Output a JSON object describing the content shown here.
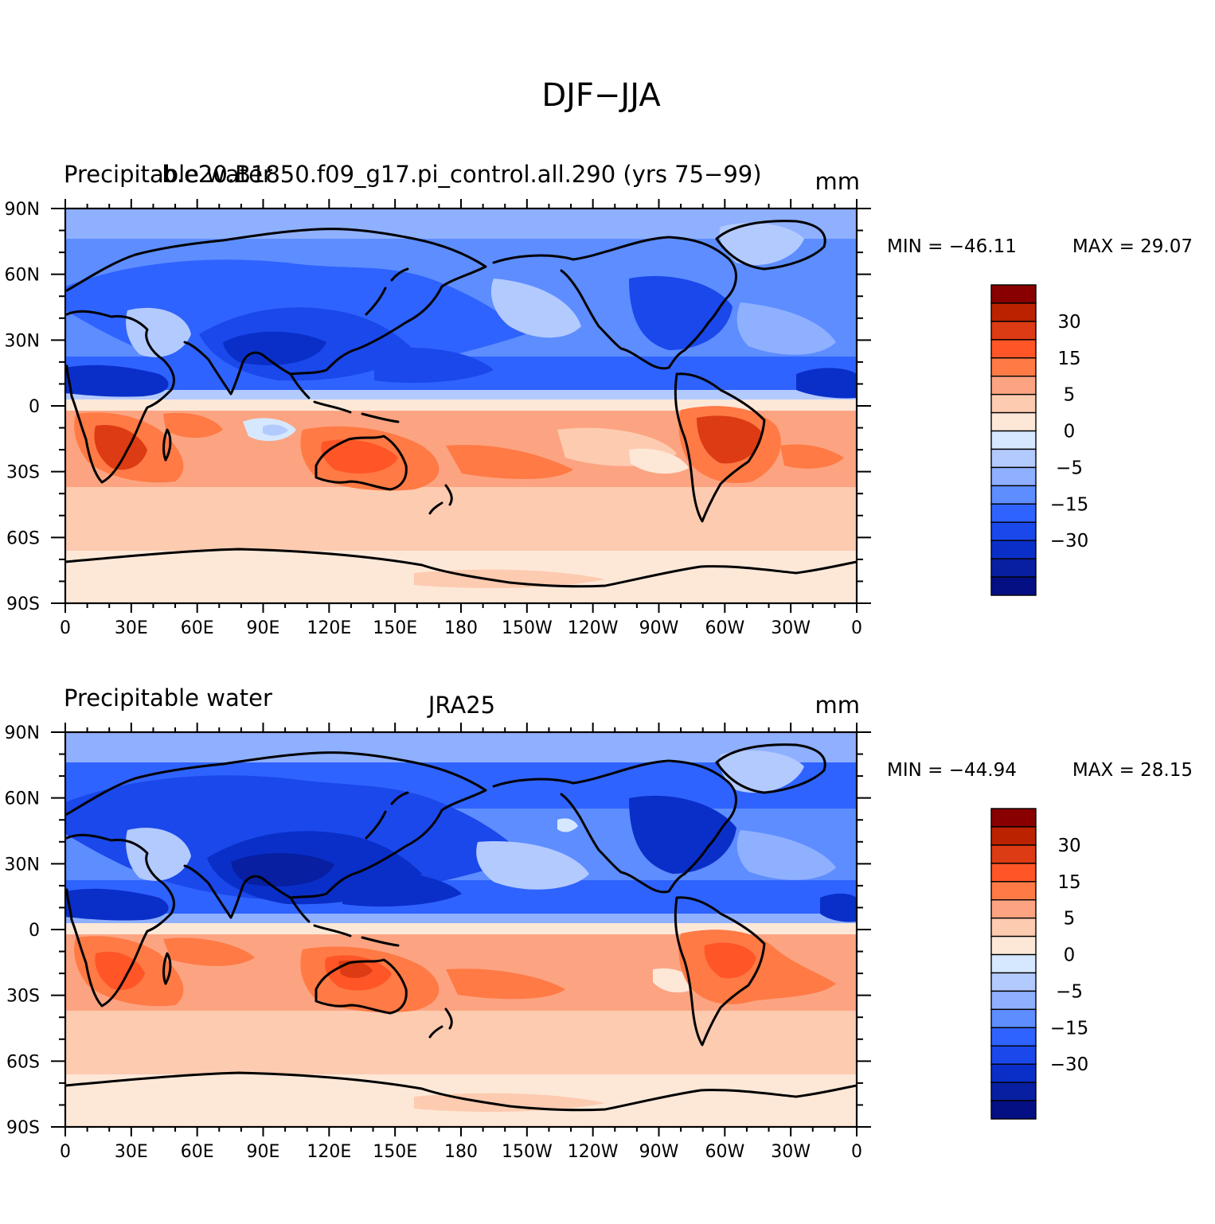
{
  "figure": {
    "title": "DJF−JJA"
  },
  "chart_data": [
    {
      "type": "heatmap",
      "variable": "Precipitable water",
      "title": "b.e20.B1850.f09_g17.pi_control.all.290 (yrs 75−99)",
      "units": "mm",
      "min_label": "MIN = −46.11",
      "max_label": "MAX =  29.07",
      "min": -46.11,
      "max": 29.07,
      "x_ticks": [
        "0",
        "30E",
        "60E",
        "90E",
        "120E",
        "150E",
        "180",
        "150W",
        "120W",
        "90W",
        "60W",
        "30W",
        "0"
      ],
      "y_ticks": [
        "90N",
        "60N",
        "30N",
        "0",
        "30S",
        "60S",
        "90S"
      ],
      "xlim": [
        0,
        360
      ],
      "ylim": [
        -90,
        90
      ]
    },
    {
      "type": "heatmap",
      "variable": "Precipitable water",
      "title": "JRA25",
      "units": "mm",
      "min_label": "MIN = −44.94",
      "max_label": "MAX =  28.15",
      "min": -44.94,
      "max": 28.15,
      "x_ticks": [
        "0",
        "30E",
        "60E",
        "90E",
        "120E",
        "150E",
        "180",
        "150W",
        "120W",
        "90W",
        "60W",
        "30W",
        "0"
      ],
      "y_ticks": [
        "90N",
        "60N",
        "30N",
        "0",
        "30S",
        "60S",
        "90S"
      ],
      "xlim": [
        0,
        360
      ],
      "ylim": [
        -90,
        90
      ]
    }
  ],
  "colorbar": {
    "colors": [
      "#880000",
      "#bb2200",
      "#dd3b14",
      "#ff5527",
      "#ff7a45",
      "#fca482",
      "#fdcbb0",
      "#fde8d8",
      "#d6e8ff",
      "#b3caff",
      "#8fb0ff",
      "#5d8dff",
      "#2f63ff",
      "#1a48eb",
      "#0a2fc8",
      "#071fa0",
      "#050f84"
    ],
    "labels": [
      "30",
      "15",
      "5",
      "0",
      "−5",
      "−15",
      "−30"
    ]
  }
}
